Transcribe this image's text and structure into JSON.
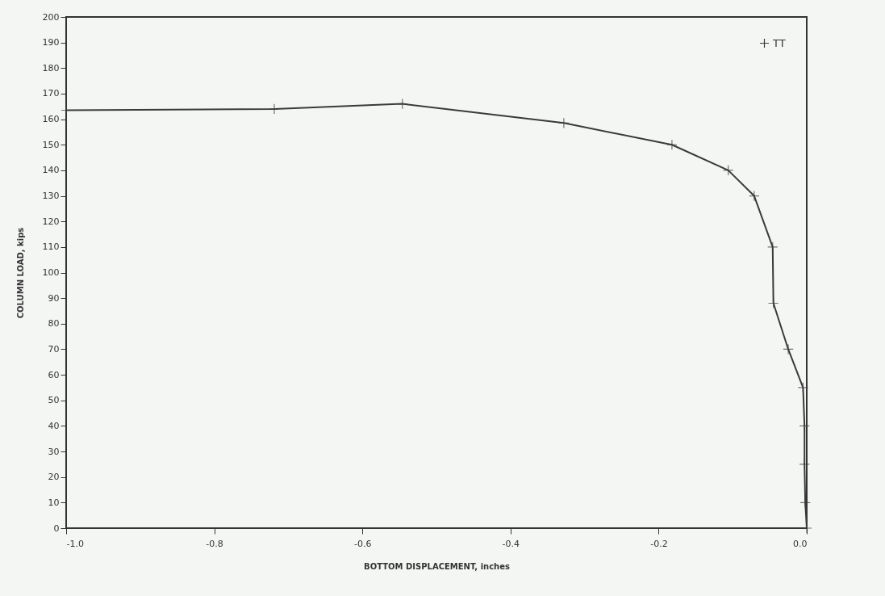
{
  "chart_data": {
    "type": "line",
    "xlabel": "BOTTOM DISPLACEMENT, inches",
    "ylabel": "COLUMN LOAD, kips",
    "x": [
      0,
      -0.002,
      -0.003,
      -0.003,
      -0.005,
      -0.025,
      -0.045,
      -0.046,
      -0.071,
      -0.106,
      -0.182,
      -0.328,
      -0.546,
      -0.719,
      -1.0
    ],
    "series": [
      {
        "name": "TT",
        "color": "#3a3a3a",
        "values": [
          0,
          10,
          25,
          40,
          55,
          70,
          88,
          110,
          130,
          140,
          150,
          158.5,
          166,
          164,
          163.5
        ]
      }
    ],
    "xlim": [
      -1.0,
      0.0
    ],
    "xticks": [
      {
        "value": -1.0,
        "label": "-1.0"
      },
      {
        "value": -0.8,
        "label": "-0.8"
      },
      {
        "value": -0.6,
        "label": "-0.6"
      },
      {
        "value": -0.4,
        "label": "-0.4"
      },
      {
        "value": -0.2,
        "label": "-0.2"
      },
      {
        "value": 0.0,
        "label": "0.0"
      }
    ],
    "ylim": [
      0,
      200
    ],
    "yticks": [
      0,
      10,
      20,
      30,
      40,
      50,
      60,
      70,
      80,
      90,
      100,
      110,
      120,
      130,
      140,
      150,
      160,
      170,
      180,
      190,
      200
    ],
    "grid": false,
    "legend": "top right",
    "marker": "cross",
    "line_style": "solid"
  }
}
